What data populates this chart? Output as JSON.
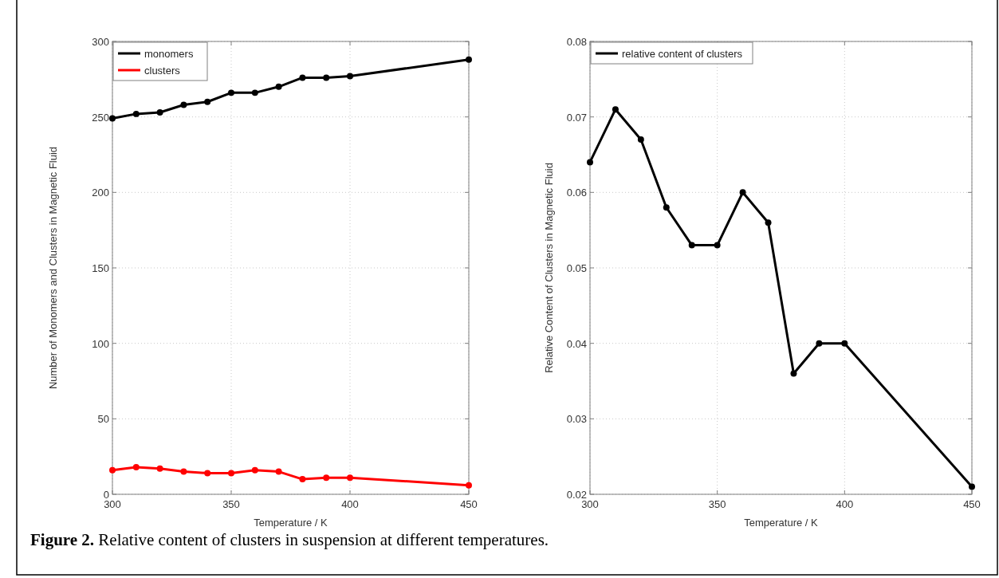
{
  "chart_data": [
    {
      "type": "line",
      "xlabel": "Temperature / K",
      "ylabel": "Number of Monomers and Clusters in Magnetic Fluid",
      "x": [
        300,
        310,
        320,
        330,
        340,
        350,
        360,
        370,
        380,
        390,
        400,
        450
      ],
      "xlim": [
        300,
        450
      ],
      "xticks": [
        300,
        350,
        400,
        450
      ],
      "ylim": [
        0,
        300
      ],
      "yticks": [
        0,
        50,
        100,
        150,
        200,
        250,
        300
      ],
      "grid": true,
      "legend": "top left",
      "marker": "circle",
      "line_style": "solid",
      "series": [
        {
          "name": "monomers",
          "color": "#000000",
          "values": [
            249,
            252,
            253,
            258,
            260,
            266,
            266,
            270,
            276,
            276,
            277,
            288
          ]
        },
        {
          "name": "clusters",
          "color": "#ff0000",
          "values": [
            16,
            18,
            17,
            15,
            14,
            14,
            16,
            15,
            10,
            11,
            11,
            6
          ]
        }
      ]
    },
    {
      "type": "line",
      "xlabel": "Temperature / K",
      "ylabel": "Relative Content of Clusters in Magnetic Fluid",
      "x": [
        300,
        310,
        320,
        330,
        340,
        350,
        360,
        370,
        380,
        390,
        400,
        450
      ],
      "xlim": [
        300,
        450
      ],
      "xticks": [
        300,
        350,
        400,
        450
      ],
      "ylim": [
        0.02,
        0.08
      ],
      "yticks": [
        0.02,
        0.03,
        0.04,
        0.05,
        0.06,
        0.07,
        0.08
      ],
      "grid": true,
      "legend": "top left",
      "marker": "circle",
      "line_style": "solid",
      "annotations": [
        "Figure 2. Relative content of clusters in suspension at different temperatures."
      ],
      "series": [
        {
          "name": "relative content of clusters",
          "color": "#000000",
          "values": [
            0.064,
            0.071,
            0.067,
            0.058,
            0.053,
            0.053,
            0.06,
            0.056,
            0.036,
            0.04,
            0.04,
            0.021
          ]
        }
      ]
    }
  ]
}
